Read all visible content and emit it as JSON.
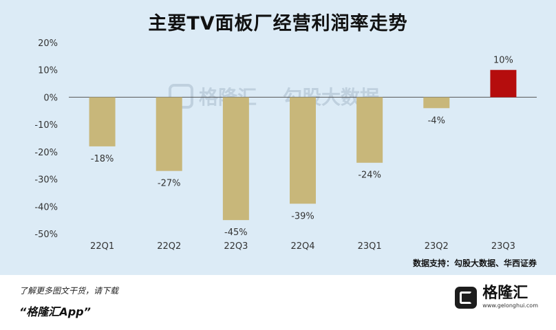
{
  "title": "主要TV面板厂经营利润率走势",
  "source_note": "数据支持：勾股大数据、华西证券",
  "watermark": {
    "left": "格隆汇",
    "right": "勾股大数据"
  },
  "footer": {
    "line1": "了解更多图文干货，请下载",
    "line2": "“格隆汇App”"
  },
  "brand": {
    "name": "格隆汇",
    "url": "www.gelonghui.com"
  },
  "chart_data": {
    "type": "bar",
    "categories": [
      "22Q1",
      "22Q2",
      "22Q3",
      "22Q4",
      "23Q1",
      "23Q2",
      "23Q3"
    ],
    "values": [
      -18,
      -27,
      -45,
      -39,
      -24,
      -4,
      10
    ],
    "data_labels": [
      "-18%",
      "-27%",
      "-45%",
      "-39%",
      "-24%",
      "-4%",
      "10%"
    ],
    "y_ticks": [
      20,
      10,
      0,
      -10,
      -20,
      -30,
      -40,
      -50
    ],
    "y_tick_labels": [
      "20%",
      "10%",
      "0%",
      "-10%",
      "-20%",
      "-30%",
      "-40%",
      "-50%"
    ],
    "ylim": [
      -50,
      20
    ],
    "colors": {
      "negative": "#c8b77a",
      "positive": "#b50d0d",
      "axis": "#555555"
    },
    "grid": false,
    "legend": "none"
  }
}
